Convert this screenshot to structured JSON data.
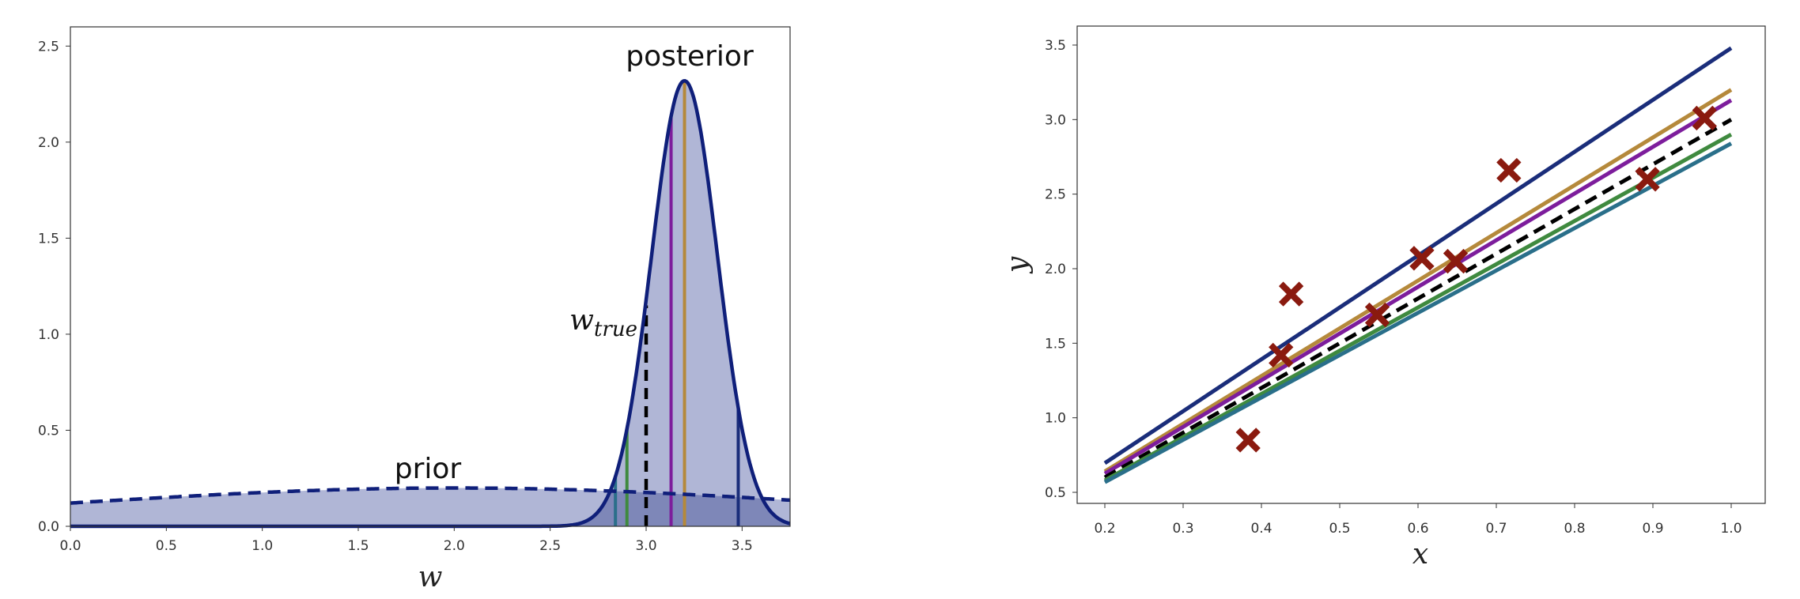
{
  "chart_data": [
    {
      "type": "area",
      "xlabel": "w",
      "ylabel": "",
      "xlim": [
        0.0,
        3.75
      ],
      "ylim": [
        0.0,
        2.6
      ],
      "xticks": [
        "0.0",
        "0.5",
        "1.0",
        "1.5",
        "2.0",
        "2.5",
        "3.0",
        "3.5"
      ],
      "yticks": [
        "0.0",
        "0.5",
        "1.0",
        "1.5",
        "2.0",
        "2.5"
      ],
      "grid": false,
      "prior": {
        "type": "normal",
        "mean": 2.0,
        "std": 2.0,
        "style": "dashed",
        "label": "prior"
      },
      "posterior": {
        "type": "normal",
        "mean": 3.2,
        "std": 0.172,
        "style": "solid",
        "label": "posterior"
      },
      "w_true": {
        "value": 3.0,
        "label_main": "w",
        "label_sub": "true",
        "style": "dashed"
      },
      "sample_lines": [
        {
          "w": 2.84,
          "color": "#2a6f8a"
        },
        {
          "w": 2.9,
          "color": "#3f8a3f"
        },
        {
          "w": 3.13,
          "color": "#7d1d9c"
        },
        {
          "w": 3.2,
          "color": "#b5893b"
        },
        {
          "w": 3.48,
          "color": "#1a2d7a"
        }
      ],
      "colors": {
        "curve": "#0f1f7a",
        "fill": "#b0b6d6",
        "overlap_fill": "#7e87b8"
      }
    },
    {
      "type": "scatter",
      "xlabel": "x",
      "ylabel": "y",
      "xlim": [
        0.2,
        1.0
      ],
      "ylim": [
        0.5,
        3.5
      ],
      "xticks": [
        "0.2",
        "0.3",
        "0.4",
        "0.5",
        "0.6",
        "0.7",
        "0.8",
        "0.9",
        "1.0"
      ],
      "yticks": [
        "0.5",
        "1.0",
        "1.5",
        "2.0",
        "2.5",
        "3.0",
        "3.5"
      ],
      "grid": false,
      "points": [
        {
          "x": 0.383,
          "y": 0.85
        },
        {
          "x": 0.425,
          "y": 1.42
        },
        {
          "x": 0.438,
          "y": 1.83
        },
        {
          "x": 0.548,
          "y": 1.69
        },
        {
          "x": 0.605,
          "y": 2.07
        },
        {
          "x": 0.648,
          "y": 2.05
        },
        {
          "x": 0.716,
          "y": 2.66
        },
        {
          "x": 0.893,
          "y": 2.6
        },
        {
          "x": 0.966,
          "y": 3.01
        }
      ],
      "marker_color": "#8a1a0f",
      "lines": [
        {
          "slope": 3.48,
          "color": "#1a2d7a",
          "style": "solid"
        },
        {
          "slope": 3.2,
          "color": "#b5893b",
          "style": "solid"
        },
        {
          "slope": 3.13,
          "color": "#7d1d9c",
          "style": "solid"
        },
        {
          "slope": 3.0,
          "color": "#000000",
          "style": "dashed"
        },
        {
          "slope": 2.9,
          "color": "#3f8a3f",
          "style": "solid"
        },
        {
          "slope": 2.84,
          "color": "#2a6f8a",
          "style": "solid"
        }
      ]
    }
  ]
}
